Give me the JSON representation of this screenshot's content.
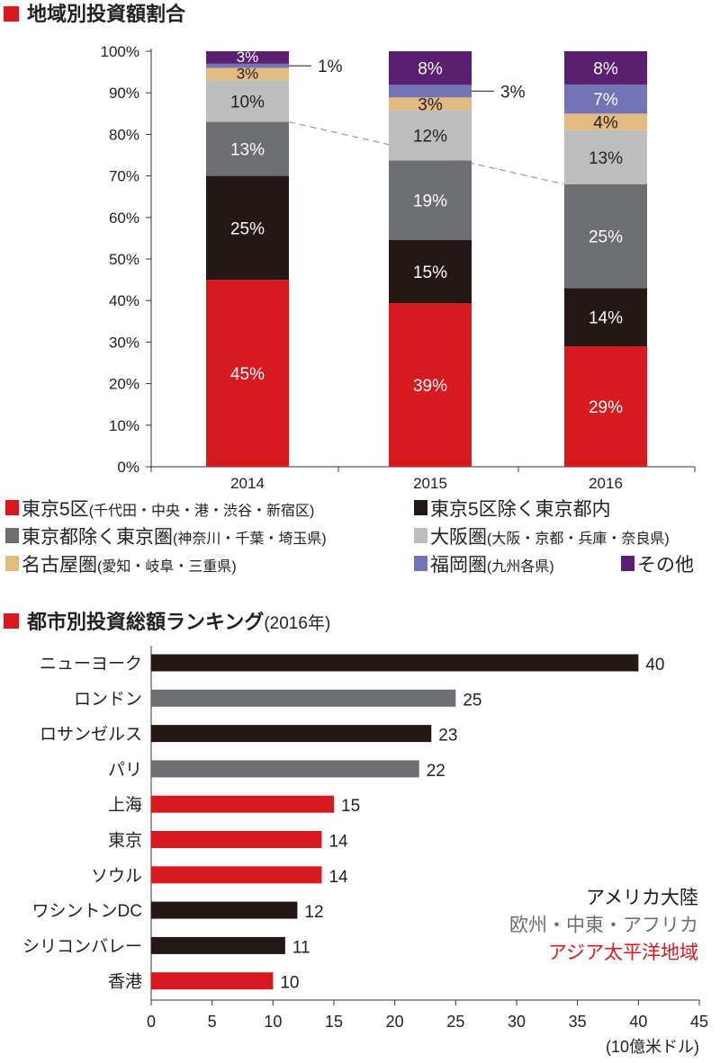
{
  "colors": {
    "red": "#d61a1f",
    "black": "#231815",
    "darkgray": "#6d6e71",
    "lightgray": "#bdbdbd",
    "tan": "#e3bb80",
    "lavender": "#7473b5",
    "purple": "#5b1f70"
  },
  "chart_data": [
    {
      "type": "bar",
      "stacked": true,
      "title": "地域別投資額割合",
      "categories": [
        "2014",
        "2015",
        "2016"
      ],
      "ylim": [
        0,
        100
      ],
      "yticks": [
        "0%",
        "10%",
        "20%",
        "30%",
        "40%",
        "50%",
        "60%",
        "70%",
        "80%",
        "90%",
        "100%"
      ],
      "series": [
        {
          "name": "東京5区",
          "sub": "(千代田・中央・港・渋谷・新宿区)",
          "color": "red",
          "values": [
            45,
            39,
            29
          ]
        },
        {
          "name": "東京5区除く東京都内",
          "sub": "",
          "color": "black",
          "values": [
            25,
            15,
            14
          ]
        },
        {
          "name": "東京都除く東京圏",
          "sub": "(神奈川・千葉・埼玉県)",
          "color": "darkgray",
          "values": [
            13,
            19,
            25
          ]
        },
        {
          "name": "大阪圏",
          "sub": "(大阪・京都・兵庫・奈良県)",
          "color": "lightgray",
          "values": [
            10,
            12,
            13
          ]
        },
        {
          "name": "名古屋圏",
          "sub": "(愛知・岐阜・三重県)",
          "color": "tan",
          "values": [
            3,
            3,
            4
          ]
        },
        {
          "name": "福岡圏",
          "sub": "(九州各県)",
          "color": "lavender",
          "values": [
            1,
            3,
            7
          ]
        },
        {
          "name": "その他",
          "sub": "",
          "color": "purple",
          "values": [
            3,
            8,
            8
          ]
        }
      ],
      "legend": "bottom"
    },
    {
      "type": "bar",
      "orientation": "horizontal",
      "title": "都市別投資総額ランキング",
      "title_suffix": "(2016年)",
      "categories": [
        "ニューヨーク",
        "ロンドン",
        "ロサンゼルス",
        "パリ",
        "上海",
        "東京",
        "ソウル",
        "ワシントンDC",
        "シリコンバレー",
        "香港"
      ],
      "values": [
        40,
        25,
        23,
        22,
        15,
        14,
        14,
        12,
        11,
        10
      ],
      "regions": [
        "americas",
        "europe",
        "americas",
        "europe",
        "asia",
        "asia",
        "asia",
        "americas",
        "americas",
        "asia"
      ],
      "xlim": [
        0,
        45
      ],
      "xticks": [
        0,
        5,
        10,
        15,
        20,
        25,
        30,
        35,
        40,
        45
      ],
      "xlabel": "(10億米ドル)",
      "region_legend": [
        {
          "key": "americas",
          "label": "アメリカ大陸",
          "color": "black"
        },
        {
          "key": "europe",
          "label": "欧州・中東・アフリカ",
          "color": "darkgray"
        },
        {
          "key": "asia",
          "label": "アジア太平洋地域",
          "color": "red"
        }
      ]
    }
  ]
}
